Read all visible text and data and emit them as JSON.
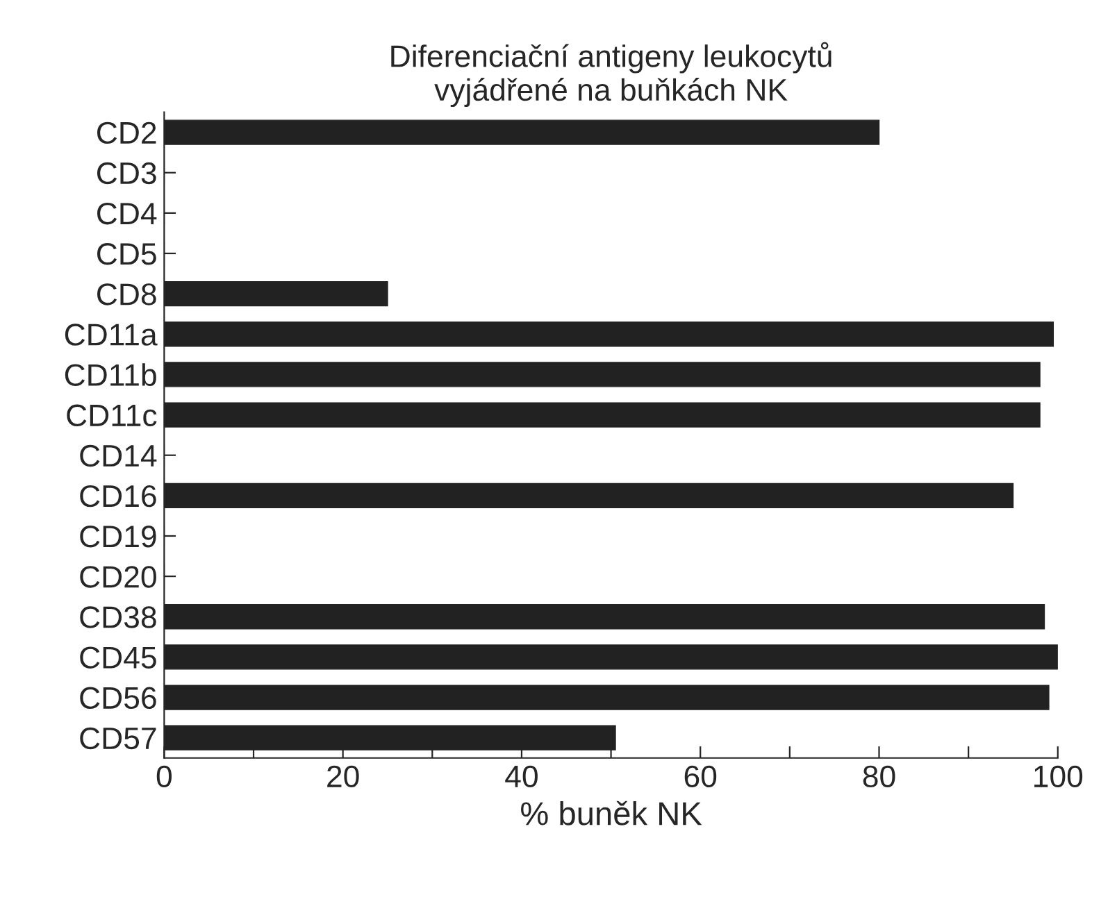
{
  "chart_data": {
    "type": "bar",
    "orientation": "horizontal",
    "title": "Diferenciační antigeny leukocytů\nvyjádřené na buňkách NK",
    "xlabel": "% buněk NK",
    "categories": [
      "CD2",
      "CD3",
      "CD4",
      "CD5",
      "CD8",
      "CD11a",
      "CD11b",
      "CD11c",
      "CD14",
      "CD16",
      "CD19",
      "CD20",
      "CD38",
      "CD45",
      "CD56",
      "CD57"
    ],
    "values": [
      80,
      0,
      0,
      0,
      25,
      99.5,
      98,
      98,
      0,
      95,
      0,
      0,
      98.5,
      100,
      99,
      50.5
    ],
    "color": "#222222",
    "xlim": [
      0,
      100
    ],
    "xticks": [
      0,
      {
        "value": 10,
        "label": null
      },
      20,
      {
        "value": 30,
        "label": null
      },
      40,
      {
        "value": 50,
        "label": null
      },
      60,
      {
        "value": 70,
        "label": null
      },
      80,
      {
        "value": 90,
        "label": null
      },
      100
    ],
    "grid": false
  }
}
